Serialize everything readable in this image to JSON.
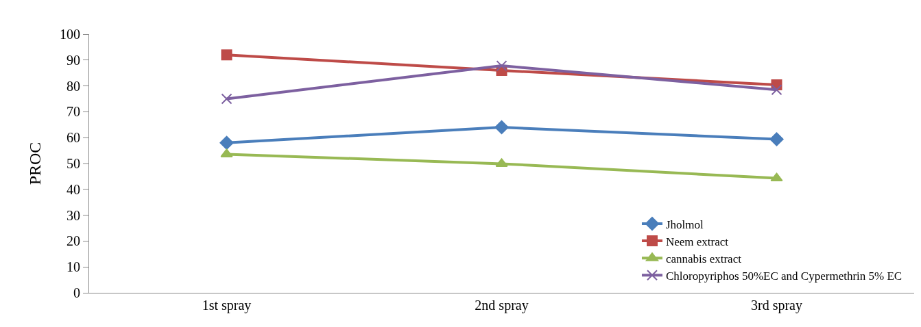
{
  "chart_data": {
    "type": "line",
    "ylabel": "PROC",
    "categories": [
      "1st spray",
      "2nd spray",
      "3rd spray"
    ],
    "series": [
      {
        "name": "Jholmol",
        "color": "#4a7ebb",
        "marker": "diamond",
        "values": [
          58,
          64,
          59.4
        ]
      },
      {
        "name": "Neem extract",
        "color": "#be4b48",
        "marker": "square",
        "values": [
          92,
          86,
          80.4
        ]
      },
      {
        "name": "cannabis extract",
        "color": "#98b954",
        "marker": "triangle",
        "values": [
          53.6,
          49.9,
          44.3
        ]
      },
      {
        "name": "Chloropyriphos 50%EC and Cypermethrin 5% EC",
        "color": "#7d60a0",
        "marker": "cross",
        "values": [
          75,
          87.8,
          78.5
        ]
      }
    ],
    "ylim": [
      0,
      100
    ],
    "yticks": [
      0,
      10,
      20,
      30,
      40,
      50,
      60,
      70,
      80,
      90,
      100
    ],
    "legend": "bottom right",
    "line_style": "solid"
  }
}
